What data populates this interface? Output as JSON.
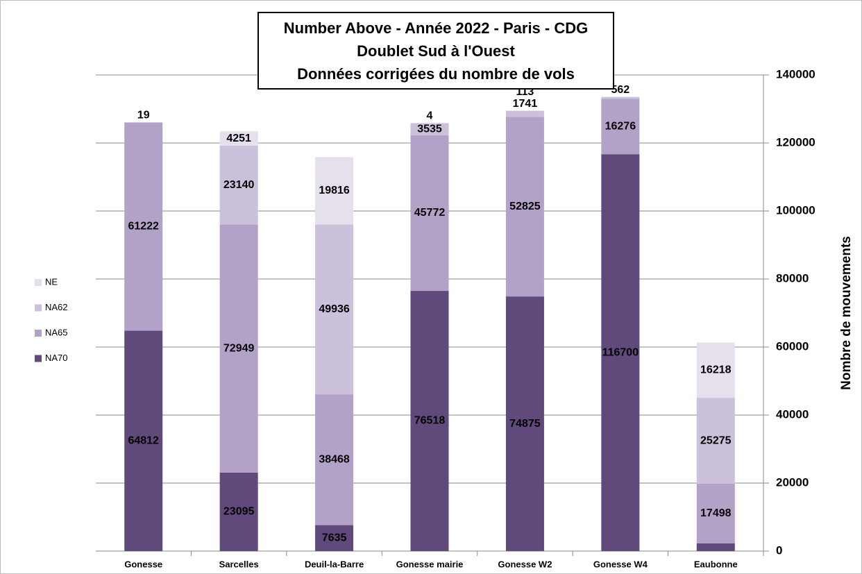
{
  "chart_data": {
    "type": "stacked_bar",
    "title": [
      "Number Above - Année 2022 - Paris - CDG",
      "Doublet Sud à l'Ouest",
      "Données corrigées du nombre de vols"
    ],
    "y_axis_label": "Nombre de mouvements",
    "categories": [
      "Gonesse",
      "Sarcelles",
      "Deuil-la-Barre",
      "Gonesse mairie",
      "Gonesse W2",
      "Gonesse W4",
      "Eaubonne"
    ],
    "series": [
      {
        "name": "NA70",
        "color": "#604a7b",
        "values": [
          64812,
          23095,
          7635,
          76518,
          74875,
          116700,
          2304
        ]
      },
      {
        "name": "NA65",
        "color": "#b3a2c7",
        "values": [
          61222,
          72949,
          38468,
          45772,
          52825,
          16276,
          17498
        ]
      },
      {
        "name": "NA62",
        "color": "#ccc1da",
        "values": [
          19,
          23140,
          49936,
          3535,
          1741,
          562,
          25275
        ]
      },
      {
        "name": "NE",
        "color": "#e6e0ec",
        "values": [
          null,
          4251,
          19816,
          4,
          113,
          null,
          16218
        ]
      }
    ],
    "ylim": [
      0,
      140000
    ],
    "yticks": [
      0,
      20000,
      40000,
      60000,
      80000,
      100000,
      120000,
      140000
    ],
    "y_axis_side": "right",
    "legend_position": "left",
    "grid": false
  }
}
